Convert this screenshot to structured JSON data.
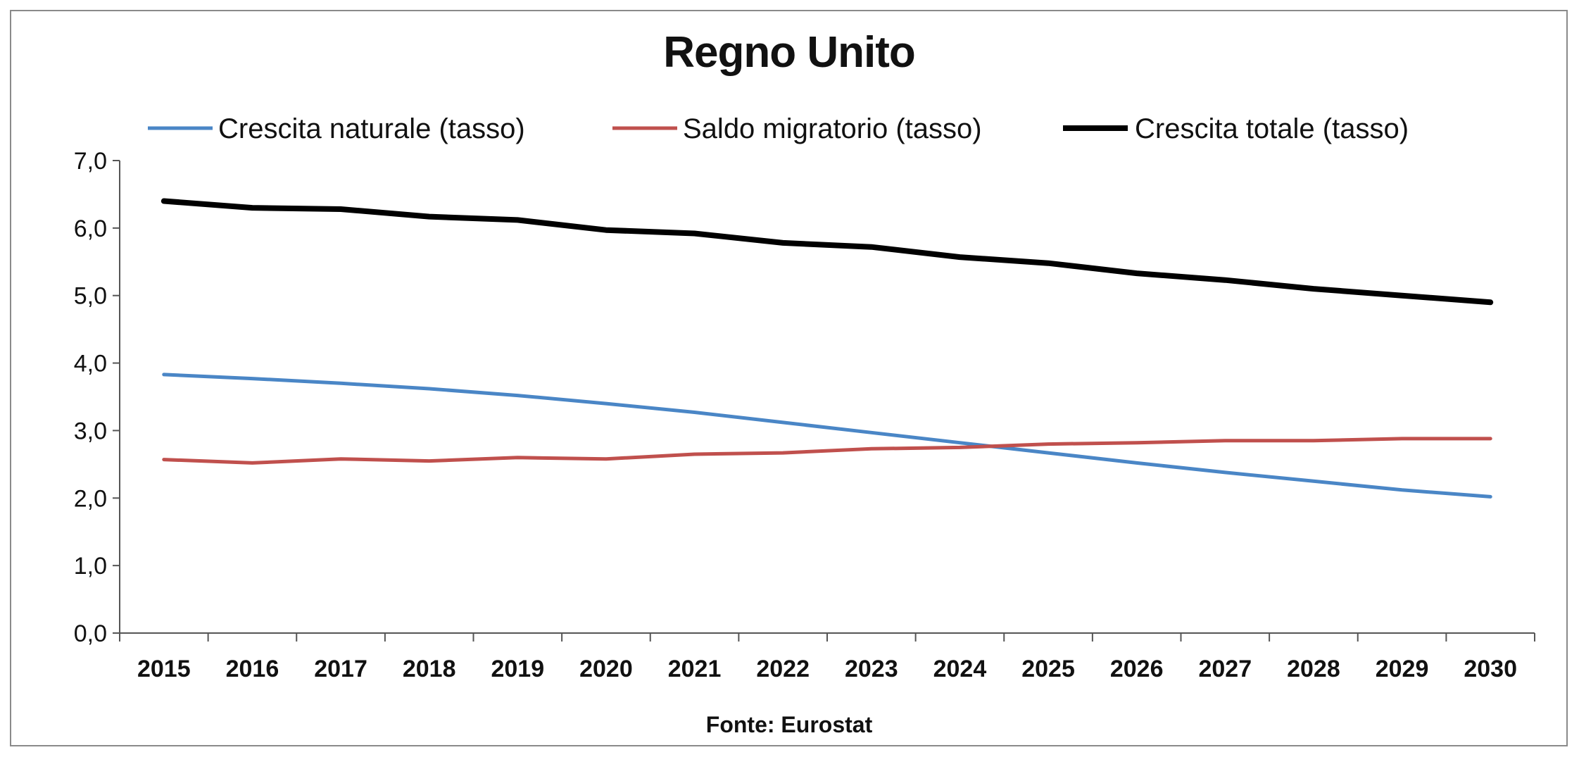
{
  "chart_data": {
    "type": "line",
    "title": "Regno Unito",
    "source": "Fonte: Eurostat",
    "xlabel": "",
    "ylabel": "",
    "ylim": [
      0,
      7
    ],
    "yticks": [
      "0,0",
      "1,0",
      "2,0",
      "3,0",
      "4,0",
      "5,0",
      "6,0",
      "7,0"
    ],
    "categories": [
      "2015",
      "2016",
      "2017",
      "2018",
      "2019",
      "2020",
      "2021",
      "2022",
      "2023",
      "2024",
      "2025",
      "2026",
      "2027",
      "2028",
      "2029",
      "2030"
    ],
    "legend_position": "top",
    "grid": false,
    "series": [
      {
        "name": "Crescita naturale (tasso)",
        "color": "#4a86c6",
        "values": [
          3.83,
          3.77,
          3.7,
          3.62,
          3.52,
          3.4,
          3.27,
          3.12,
          2.97,
          2.82,
          2.67,
          2.52,
          2.38,
          2.25,
          2.12,
          2.02
        ]
      },
      {
        "name": "Saldo migratorio (tasso)",
        "color": "#c0504d",
        "values": [
          2.57,
          2.52,
          2.58,
          2.55,
          2.6,
          2.58,
          2.65,
          2.67,
          2.73,
          2.75,
          2.8,
          2.82,
          2.85,
          2.85,
          2.88,
          2.88
        ]
      },
      {
        "name": "Crescita totale (tasso)",
        "color": "#000000",
        "values": [
          6.4,
          6.3,
          6.28,
          6.17,
          6.12,
          5.97,
          5.92,
          5.78,
          5.72,
          5.57,
          5.48,
          5.33,
          5.23,
          5.1,
          5.0,
          4.9
        ]
      }
    ]
  }
}
